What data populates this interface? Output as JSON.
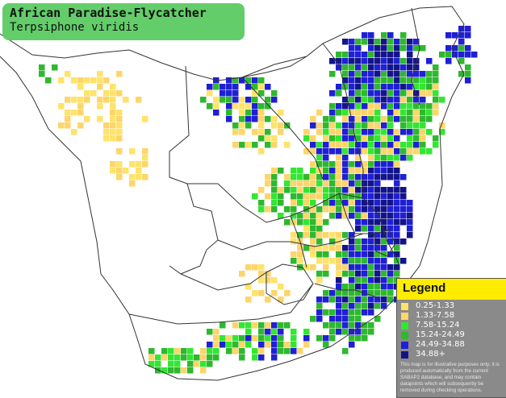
{
  "title": {
    "common_name": "African Paradise-Flycatcher",
    "scientific_name": "Terpsiphone viridis"
  },
  "legend": {
    "title": "Legend",
    "items": [
      {
        "label": "0.25-1.33",
        "color": "#ffe36a"
      },
      {
        "label": "1.33-7.58",
        "color": "#fdd56b"
      },
      {
        "label": "7.58-15.24",
        "color": "#33e633"
      },
      {
        "label": "15.24-24.49",
        "color": "#2fb82f"
      },
      {
        "label": "24.49-34.88",
        "color": "#1f1fd6"
      },
      {
        "label": "34.88+",
        "color": "#14148a"
      }
    ],
    "disclaimer": "This map is for illustrative purposes only; it is produced automatically from the current SABAP2 database, and may contain datapoints which will subsequently be removed during checking operations."
  },
  "map_colors": {
    "yellow": "#ffe36a",
    "gold": "#fdd56b",
    "light_green": "#33e633",
    "green": "#2fb82f",
    "blue": "#1f1fd6",
    "dark_blue": "#14148a",
    "border": "#333333"
  }
}
